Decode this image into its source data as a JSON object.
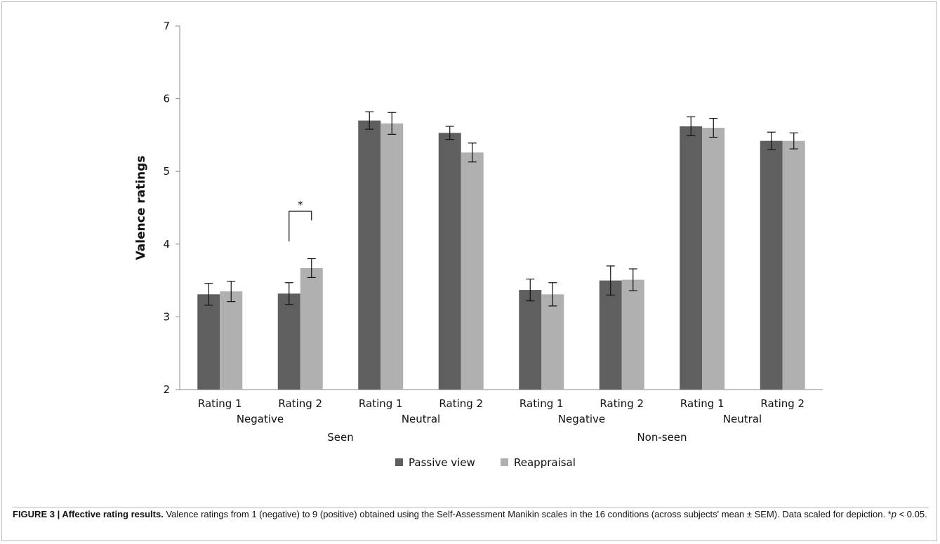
{
  "chart_data": {
    "type": "bar",
    "ylabel": "Valence ratings",
    "xlabel": "",
    "ylim": [
      2,
      7
    ],
    "yticks": [
      "2",
      "3",
      "4",
      "5",
      "6",
      "7"
    ],
    "grid": false,
    "legend_position": "bottom",
    "categories": [
      "Rating 1",
      "Rating 2",
      "Rating 1",
      "Rating 2",
      "Rating 1",
      "Rating 2",
      "Rating 1",
      "Rating 2"
    ],
    "group_labels": [
      "Negative",
      "Neutral",
      "Negative",
      "Neutral"
    ],
    "supergroup_labels": [
      "Seen",
      "Non-seen"
    ],
    "series": [
      {
        "name": "Passive view",
        "color": "#5f5f5f",
        "values": [
          3.31,
          3.32,
          5.7,
          5.53,
          3.37,
          3.5,
          5.62,
          5.42
        ],
        "errors": [
          0.15,
          0.15,
          0.12,
          0.09,
          0.15,
          0.2,
          0.13,
          0.12
        ]
      },
      {
        "name": "Reappraisal",
        "color": "#b0b0b0",
        "values": [
          3.35,
          3.67,
          5.66,
          5.26,
          3.31,
          3.51,
          5.6,
          5.42
        ],
        "errors": [
          0.14,
          0.13,
          0.15,
          0.13,
          0.16,
          0.15,
          0.13,
          0.11
        ]
      }
    ],
    "annotations": [
      {
        "text": "*",
        "category_index": 1
      }
    ]
  },
  "caption": {
    "label": "FIGURE 3 | ",
    "title": "Affective rating results.",
    "text_1": " Valence ratings from 1 (negative) to 9 (positive) obtained using the Self-Assessment Manikin scales in the 16 conditions (across subjects' mean ± SEM). Data scaled for depiction. *",
    "p_symbol": "p",
    "text_2": " < 0.05."
  }
}
